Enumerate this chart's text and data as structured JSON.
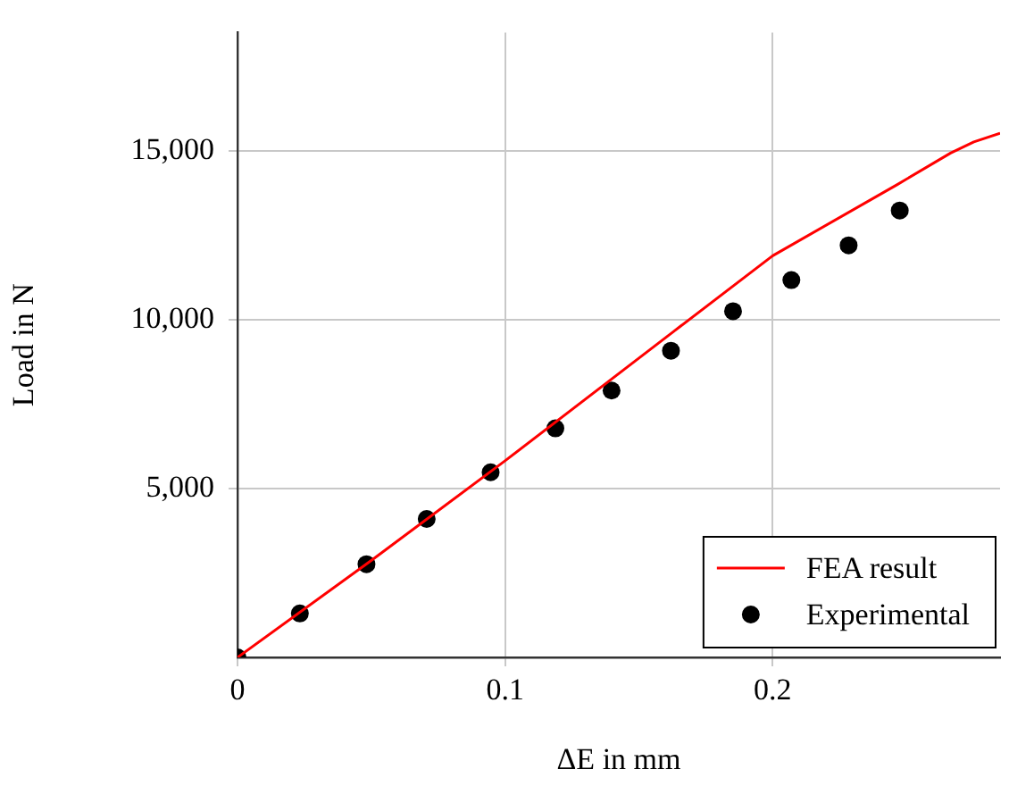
{
  "chart_data": {
    "type": "line",
    "xlabel": "ΔE in mm",
    "ylabel": "Load in N",
    "xlim": [
      0,
      0.285
    ],
    "ylim": [
      0,
      18500
    ],
    "xticks": [
      0,
      0.1,
      0.2
    ],
    "yticks": [
      {
        "value": 5000,
        "label": "5,000"
      },
      {
        "value": 10000,
        "label": "10,000"
      },
      {
        "value": 15000,
        "label": "15,000"
      }
    ],
    "grid": true,
    "legend": "bottom right",
    "series": [
      {
        "name": "FEA result",
        "color": "#ff0000",
        "marker": "none",
        "line_style": "solid",
        "x": [
          0,
          0.05,
          0.1,
          0.163,
          0.2,
          0.2466,
          0.2665,
          0.2752,
          0.285
        ],
        "values": [
          0,
          2870,
          5820,
          9650,
          11890,
          14000,
          14930,
          15260,
          15520
        ]
      },
      {
        "name": "Experimental",
        "type": "scatter",
        "color": "#000000",
        "marker": "circle",
        "x": [
          0,
          0.0233,
          0.0482,
          0.0707,
          0.0946,
          0.1188,
          0.1398,
          0.162,
          0.1852,
          0.207,
          0.2284,
          0.2475
        ],
        "values": [
          0,
          1300,
          2760,
          4100,
          5480,
          6780,
          7900,
          9080,
          10250,
          11170,
          12200,
          13230
        ]
      }
    ]
  }
}
